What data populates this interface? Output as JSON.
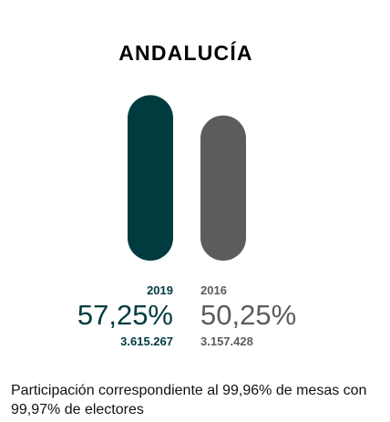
{
  "chart_data": {
    "type": "bar",
    "title": "ANDALUCÍA",
    "categories": [
      "2019",
      "2016"
    ],
    "values": [
      57.25,
      50.25
    ],
    "value_labels": [
      "57,25%",
      "50,25%"
    ],
    "votes": [
      "3.615.267",
      "3.157.428"
    ],
    "colors": [
      "#003b40",
      "#5c5c5c"
    ],
    "ylim": [
      0,
      70
    ],
    "grid": false,
    "legend": "none"
  },
  "footnote": "Participación correspondiente al 99,96% de mesas con 99,97% de electores"
}
